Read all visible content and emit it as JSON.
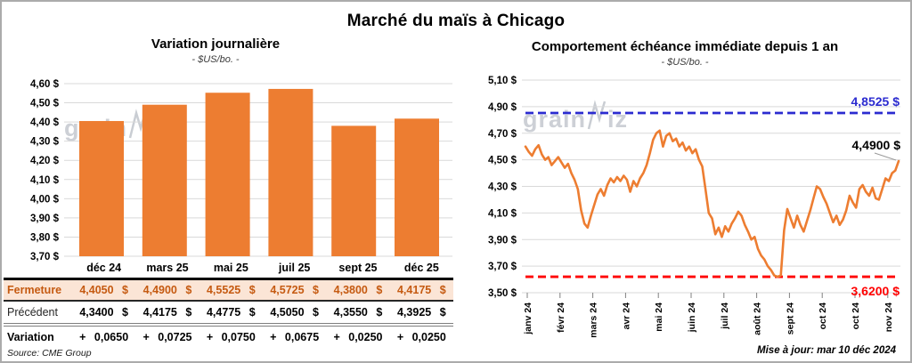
{
  "title": "Marché du maïs à Chicago",
  "watermark": {
    "left": "grain",
    "right": "iz"
  },
  "footer": {
    "source": "Source: CME Group",
    "updated": "Mise à jour: mar 10 déc 2024"
  },
  "colors": {
    "series_orange": "#ED7D31",
    "high_blue": "#2B2BD0",
    "low_red": "#FF0000",
    "variation_green": "#00963C",
    "fermeture_bg": "#FBE5D6",
    "fermeture_text": "#C55A11",
    "grid_gray": "#D9D9D9"
  },
  "table": {
    "columns": [
      "déc 24",
      "mars 25",
      "mai 25",
      "juil 25",
      "sept 25",
      "déc 25"
    ],
    "rows": {
      "fermeture": {
        "label": "Fermeture",
        "values": [
          "4,4050 $",
          "4,4900 $",
          "4,5525 $",
          "4,5725 $",
          "4,3800 $",
          "4,4175 $"
        ]
      },
      "precedent": {
        "label": "Précédent",
        "values": [
          "4,3400 $",
          "4,4175 $",
          "4,4775 $",
          "4,5050 $",
          "4,3550 $",
          "4,3925 $"
        ]
      },
      "variation": {
        "label": "Variation",
        "values": [
          "+ 0,0650",
          "+ 0,0725",
          "+ 0,0750",
          "+ 0,0675",
          "+ 0,0250",
          "+ 0,0250"
        ]
      }
    }
  },
  "chart_data": [
    {
      "type": "bar",
      "title": "Variation journalière",
      "subtitle": "- $US/bo. -",
      "categories": [
        "déc 24",
        "mars 25",
        "mai 25",
        "juil 25",
        "sept 25",
        "déc 25"
      ],
      "values": [
        4.405,
        4.49,
        4.5525,
        4.5725,
        4.38,
        4.4175
      ],
      "ylim": [
        3.7,
        4.6
      ],
      "bar_color": "#ED7D31",
      "y_ticks": [
        {
          "v": 4.6,
          "label": "4,60 $"
        },
        {
          "v": 4.5,
          "label": "4,50 $"
        },
        {
          "v": 4.4,
          "label": "4,40 $"
        },
        {
          "v": 4.3,
          "label": "4,30 $"
        },
        {
          "v": 4.2,
          "label": "4,20 $"
        },
        {
          "v": 4.1,
          "label": "4,10 $"
        },
        {
          "v": 4.0,
          "label": "4,00 $"
        },
        {
          "v": 3.9,
          "label": "3,90 $"
        },
        {
          "v": 3.8,
          "label": "3,80 $"
        },
        {
          "v": 3.7,
          "label": "3,70 $"
        }
      ]
    },
    {
      "type": "line",
      "title": "Comportement échéance immédiate depuis 1 an",
      "subtitle": "- $US/bo. -",
      "series_color": "#ED7D31",
      "ylim": [
        3.5,
        5.1
      ],
      "y_ticks": [
        {
          "v": 5.1,
          "label": "5,10 $"
        },
        {
          "v": 4.9,
          "label": "4,90 $"
        },
        {
          "v": 4.7,
          "label": "4,70 $"
        },
        {
          "v": 4.5,
          "label": "4,50 $"
        },
        {
          "v": 4.3,
          "label": "4,30 $"
        },
        {
          "v": 4.1,
          "label": "4,10 $"
        },
        {
          "v": 3.9,
          "label": "3,90 $"
        },
        {
          "v": 3.7,
          "label": "3,70 $"
        },
        {
          "v": 3.5,
          "label": "3,50 $"
        }
      ],
      "x_tick_labels": [
        "janv 24",
        "févr 24",
        "mars 24",
        "avr 24",
        "mai 24",
        "juin 24",
        "juil 24",
        "août 24",
        "sept 24",
        "oct 24",
        "oct 24",
        "nov 24"
      ],
      "values": [
        4.6,
        4.56,
        4.53,
        4.58,
        4.61,
        4.54,
        4.5,
        4.52,
        4.46,
        4.49,
        4.52,
        4.48,
        4.44,
        4.47,
        4.4,
        4.35,
        4.28,
        4.12,
        4.02,
        3.99,
        4.08,
        4.16,
        4.24,
        4.28,
        4.23,
        4.31,
        4.36,
        4.33,
        4.37,
        4.34,
        4.38,
        4.35,
        4.26,
        4.34,
        4.3,
        4.36,
        4.4,
        4.46,
        4.55,
        4.65,
        4.7,
        4.72,
        4.6,
        4.68,
        4.7,
        4.64,
        4.66,
        4.6,
        4.63,
        4.57,
        4.6,
        4.55,
        4.58,
        4.5,
        4.45,
        4.28,
        4.1,
        4.06,
        3.94,
        3.99,
        3.92,
        4.0,
        3.96,
        4.02,
        4.06,
        4.11,
        4.08,
        4.01,
        3.96,
        3.9,
        3.92,
        3.83,
        3.78,
        3.75,
        3.7,
        3.67,
        3.63,
        3.62,
        3.63,
        3.97,
        4.13,
        4.06,
        3.99,
        4.08,
        4.01,
        3.96,
        4.04,
        4.12,
        4.21,
        4.3,
        4.28,
        4.22,
        4.17,
        4.1,
        4.03,
        4.08,
        4.01,
        4.05,
        4.12,
        4.23,
        4.18,
        4.14,
        4.28,
        4.31,
        4.26,
        4.23,
        4.29,
        4.21,
        4.2,
        4.28,
        4.36,
        4.34,
        4.4,
        4.42,
        4.49
      ],
      "annotations": {
        "high": {
          "value": 4.8525,
          "label": "4,8525 $",
          "color": "#2B2BD0"
        },
        "low": {
          "value": 3.62,
          "label": "3,6200 $",
          "color": "#FF0000"
        },
        "last": {
          "value": 4.49,
          "label": "4,4900 $",
          "color": "#000000"
        }
      }
    }
  ]
}
